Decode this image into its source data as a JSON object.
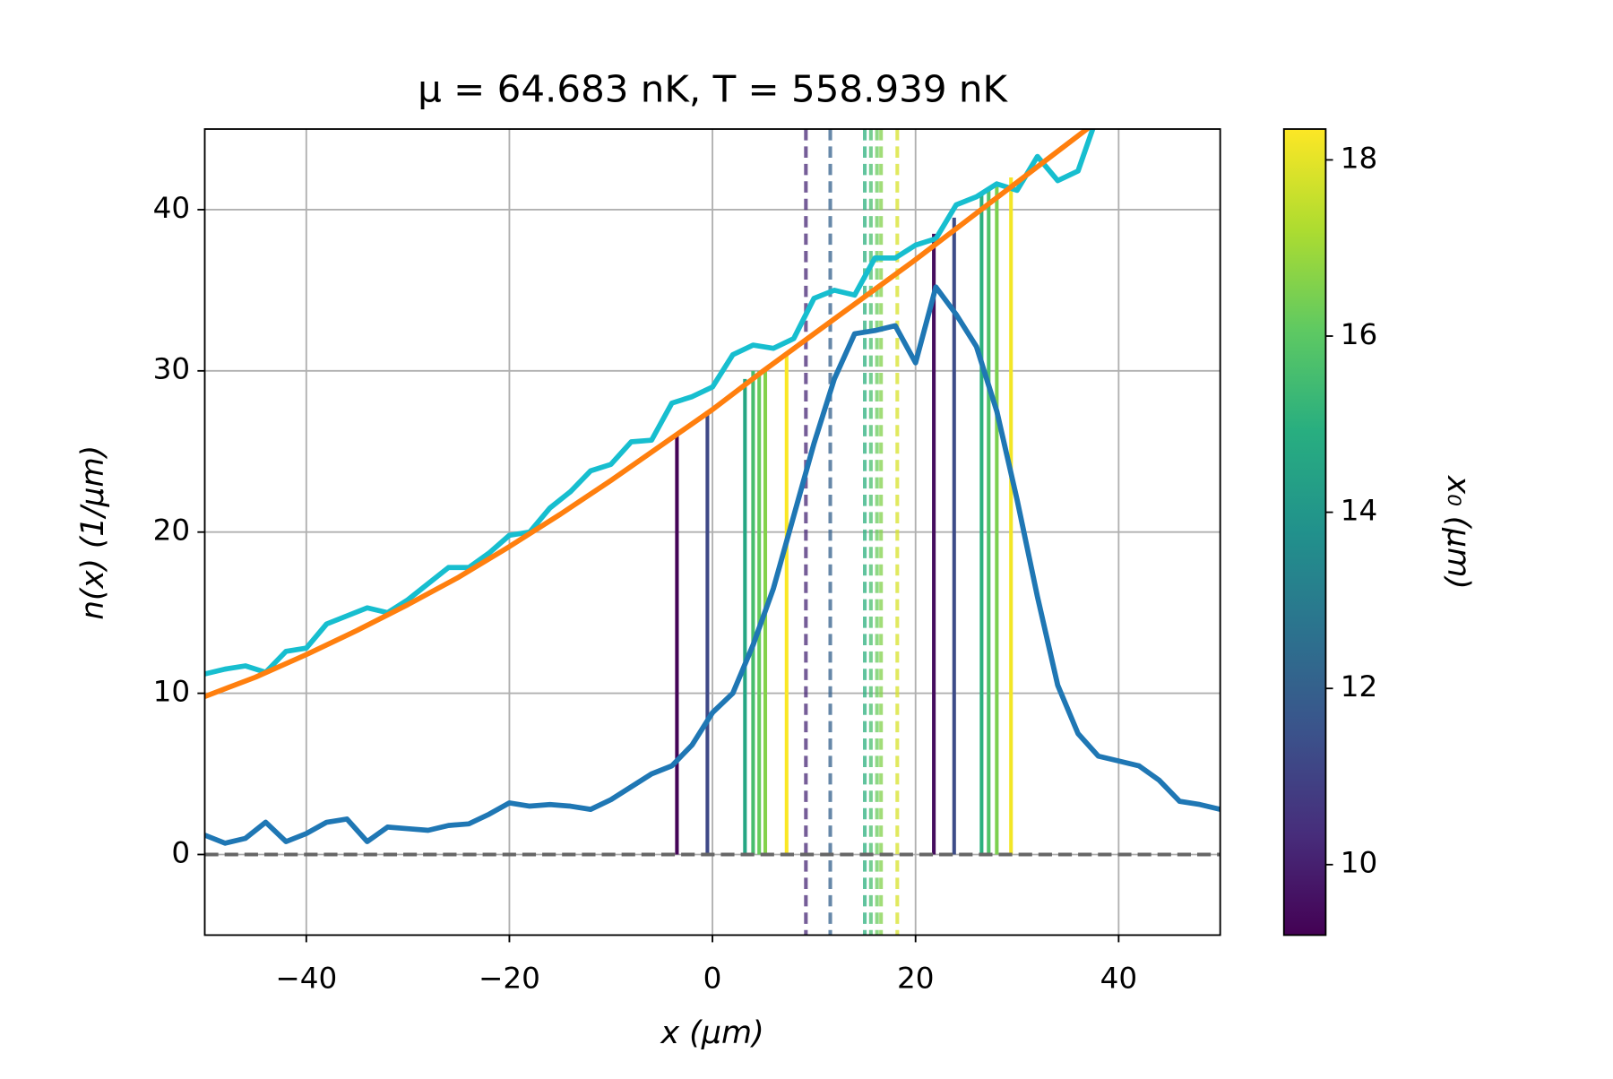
{
  "chart_data": {
    "type": "line",
    "title": "μ = 64.683  nK, T = 558.939  nK",
    "title_color": "#ff7f0e",
    "xlabel": "x   (μm)",
    "ylabel": "n(x)   (1/μm)",
    "xlim": [
      -50,
      50
    ],
    "ylim": [
      -5,
      45
    ],
    "xticks": [
      {
        "value": -40,
        "label": "−40"
      },
      {
        "value": -20,
        "label": "−20"
      },
      0,
      20,
      40
    ],
    "yticks": [
      0,
      10,
      20,
      30,
      40
    ],
    "grid": true,
    "hline": 0,
    "series": [
      {
        "color": "#1f77b4",
        "x": [
          -50,
          -48,
          -46,
          -44,
          -42,
          -40,
          -38,
          -36,
          -34,
          -32,
          -30,
          -28,
          -26,
          -24,
          -22,
          -20,
          -18,
          -16,
          -14,
          -12,
          -10,
          -8,
          -6,
          -4,
          -2,
          0,
          2,
          4,
          6,
          8,
          10,
          12,
          14,
          16,
          18,
          20,
          22,
          24,
          26,
          28,
          30,
          32,
          34,
          36,
          38,
          40,
          42,
          44,
          46,
          48,
          50
        ],
        "values": [
          1.2,
          0.7,
          1.0,
          2.0,
          0.8,
          1.3,
          2.0,
          2.2,
          0.8,
          1.7,
          1.6,
          1.5,
          1.8,
          1.9,
          2.5,
          3.2,
          3.0,
          3.1,
          3.0,
          2.8,
          3.4,
          4.2,
          5.0,
          5.5,
          6.8,
          8.8,
          10.0,
          13.0,
          16.5,
          21.0,
          25.5,
          29.5,
          32.3,
          32.5,
          32.8,
          30.5,
          35.2,
          33.5,
          31.5,
          27.5,
          22.0,
          16.0,
          10.5,
          7.5,
          6.1,
          5.8,
          5.5,
          4.6,
          3.3,
          3.1,
          2.8
        ]
      },
      {
        "color": "#17becf",
        "x": [
          -50,
          -48,
          -46,
          -44,
          -42,
          -40,
          -38,
          -36,
          -34,
          -32,
          -30,
          -28,
          -26,
          -24,
          -22,
          -20,
          -18,
          -16,
          -14,
          -12,
          -10,
          -8,
          -6,
          -4,
          -2,
          0,
          2,
          4,
          6,
          8,
          10,
          12,
          14,
          16,
          18,
          20,
          22,
          24,
          26,
          28,
          30,
          32,
          34,
          36,
          38
        ],
        "values": [
          11.2,
          11.5,
          11.7,
          11.3,
          12.6,
          12.8,
          14.3,
          14.8,
          15.3,
          15.0,
          15.8,
          16.8,
          17.8,
          17.8,
          18.7,
          19.8,
          20.0,
          21.5,
          22.5,
          23.8,
          24.2,
          25.6,
          25.7,
          28.0,
          28.4,
          29.0,
          31.0,
          31.6,
          31.4,
          32.0,
          34.5,
          35.0,
          34.7,
          37.0,
          37.0,
          37.8,
          38.2,
          40.3,
          40.8,
          41.6,
          41.2,
          43.3,
          41.8,
          42.4,
          46.0
        ]
      },
      {
        "color": "#ff7f0e",
        "x": [
          -50,
          -45,
          -40,
          -35,
          -30,
          -25,
          -20,
          -15,
          -10,
          -5,
          0,
          5,
          10,
          15,
          20,
          25,
          30,
          35,
          40
        ],
        "values": [
          9.8,
          11.0,
          12.4,
          13.9,
          15.5,
          17.2,
          19.1,
          21.1,
          23.2,
          25.4,
          27.6,
          30.0,
          32.3,
          34.6,
          36.9,
          39.3,
          41.7,
          44.1,
          46.5
        ]
      }
    ],
    "vlines": [
      {
        "x": -3.5,
        "top": 26.0,
        "x0": 9.3
      },
      {
        "x": -0.5,
        "top": 27.5,
        "x0": 11.2
      },
      {
        "x": 3.2,
        "top": 29.5,
        "x0": 14.6
      },
      {
        "x": 4.0,
        "top": 30.0,
        "x0": 15.6
      },
      {
        "x": 4.6,
        "top": 30.0,
        "x0": 16.2
      },
      {
        "x": 5.2,
        "top": 30.0,
        "x0": 16.6
      },
      {
        "x": 7.3,
        "top": 31.0,
        "x0": 18.3
      },
      {
        "x": 21.8,
        "top": 38.5,
        "x0": 9.5
      },
      {
        "x": 23.8,
        "top": 39.5,
        "x0": 11.3
      },
      {
        "x": 26.5,
        "top": 41.0,
        "x0": 15.0
      },
      {
        "x": 27.2,
        "top": 41.2,
        "x0": 15.8
      },
      {
        "x": 28.0,
        "top": 41.5,
        "x0": 16.5
      },
      {
        "x": 29.4,
        "top": 42.0,
        "x0": 18.2
      }
    ],
    "dashed_vlines": [
      {
        "x": 9.2,
        "x0": 10.2
      },
      {
        "x": 11.6,
        "x0": 12.0
      },
      {
        "x": 15.0,
        "x0": 15.0
      },
      {
        "x": 15.6,
        "x0": 15.6
      },
      {
        "x": 16.2,
        "x0": 16.2
      },
      {
        "x": 16.6,
        "x0": 16.6
      },
      {
        "x": 18.2,
        "x0": 17.8
      }
    ],
    "colorbar": {
      "colormap": "viridis",
      "label": "x₀   (μm)",
      "lim": [
        9.2,
        18.35
      ],
      "ticks": [
        10,
        12,
        14,
        16,
        18
      ]
    }
  }
}
